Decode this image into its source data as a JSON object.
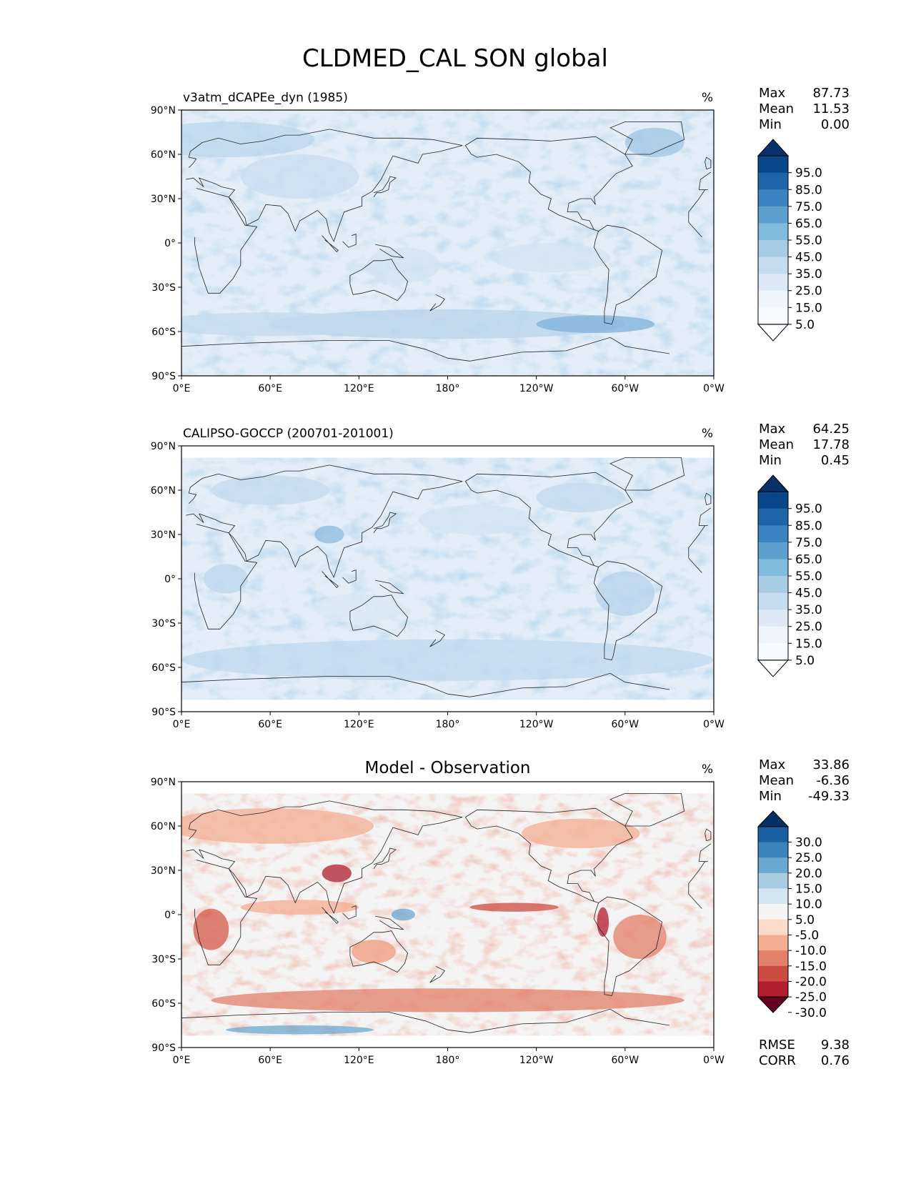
{
  "figure": {
    "title": "CLDMED_CAL SON global"
  },
  "chart_data": [
    {
      "type": "heatmap",
      "panel": "model",
      "title": "v3atm_dCAPEe_dyn (1985)",
      "units": "%",
      "xlabel": "",
      "ylabel": "",
      "xticks": [
        "0°E",
        "60°E",
        "120°E",
        "180°",
        "120°W",
        "60°W",
        "0°W"
      ],
      "yticks": [
        "90°N",
        "60°N",
        "30°N",
        "0°",
        "30°S",
        "60°S",
        "90°S"
      ],
      "xlim": [
        0,
        360
      ],
      "ylim": [
        -90,
        90
      ],
      "stats": [
        {
          "label": "Max",
          "value": "87.73"
        },
        {
          "label": "Mean",
          "value": "11.53"
        },
        {
          "label": "Min",
          "value": "0.00"
        }
      ],
      "colorbar": {
        "levels": [
          "95.0",
          "85.0",
          "75.0",
          "65.0",
          "55.0",
          "45.0",
          "35.0",
          "25.0",
          "15.0",
          "5.0"
        ],
        "colors": [
          "#08306b",
          "#08468a",
          "#1f63a8",
          "#3a82c0",
          "#5da0d0",
          "#82bbdb",
          "#a6cde4",
          "#c5dbee",
          "#dde9f6",
          "#eef5fc",
          "#f7fbff",
          "#ffffff"
        ],
        "extend": "both"
      },
      "field_description_colors": {
        "background": "#e5eff9",
        "low": "#f4f8fd",
        "mid": "#c6dbef",
        "high": "#6fa9d6"
      }
    },
    {
      "type": "heatmap",
      "panel": "observation",
      "title": "CALIPSO-GOCCP (200701-201001)",
      "units": "%",
      "xlabel": "",
      "ylabel": "",
      "xticks": [
        "0°E",
        "60°E",
        "120°E",
        "180°",
        "120°W",
        "60°W",
        "0°W"
      ],
      "yticks": [
        "90°N",
        "60°N",
        "30°N",
        "0°",
        "30°S",
        "60°S",
        "90°S"
      ],
      "xlim": [
        0,
        360
      ],
      "ylim": [
        -90,
        90
      ],
      "data_lat_range": [
        -82,
        82
      ],
      "stats": [
        {
          "label": "Max",
          "value": "64.25"
        },
        {
          "label": "Mean",
          "value": "17.78"
        },
        {
          "label": "Min",
          "value": "0.45"
        }
      ],
      "colorbar": {
        "levels": [
          "95.0",
          "85.0",
          "75.0",
          "65.0",
          "55.0",
          "45.0",
          "35.0",
          "25.0",
          "15.0",
          "5.0"
        ],
        "colors": [
          "#08306b",
          "#08468a",
          "#1f63a8",
          "#3a82c0",
          "#5da0d0",
          "#82bbdb",
          "#a6cde4",
          "#c5dbee",
          "#dde9f6",
          "#eef5fc",
          "#f7fbff",
          "#ffffff"
        ],
        "extend": "both"
      }
    },
    {
      "type": "heatmap",
      "panel": "difference",
      "title": "Model - Observation",
      "units": "%",
      "xlabel": "",
      "ylabel": "",
      "xticks": [
        "0°E",
        "60°E",
        "120°E",
        "180°",
        "120°W",
        "60°W",
        "0°W"
      ],
      "yticks": [
        "90°N",
        "60°N",
        "30°N",
        "0°",
        "30°S",
        "60°S",
        "90°S"
      ],
      "xlim": [
        0,
        360
      ],
      "ylim": [
        -90,
        90
      ],
      "data_lat_range": [
        -82,
        82
      ],
      "stats": [
        {
          "label": "Max",
          "value": "33.86"
        },
        {
          "label": "Mean",
          "value": "-6.36"
        },
        {
          "label": "Min",
          "value": "-49.33"
        }
      ],
      "metrics": [
        {
          "label": "RMSE",
          "value": "9.38"
        },
        {
          "label": "CORR",
          "value": "0.76"
        }
      ],
      "colorbar": {
        "levels": [
          "30.0",
          "25.0",
          "20.0",
          "15.0",
          "10.0",
          "5.0",
          "-5.0",
          "-10.0",
          "-15.0",
          "-20.0",
          "-25.0",
          "-30.0"
        ],
        "colors": [
          "#053061",
          "#1c5fa1",
          "#3a84bb",
          "#6ba8d0",
          "#a7cde3",
          "#d4e6f1",
          "#f4f4f4",
          "#fbdcca",
          "#f4ae91",
          "#e3806a",
          "#cc4c43",
          "#b01e2f",
          "#67001f"
        ],
        "extend": "both"
      }
    }
  ]
}
